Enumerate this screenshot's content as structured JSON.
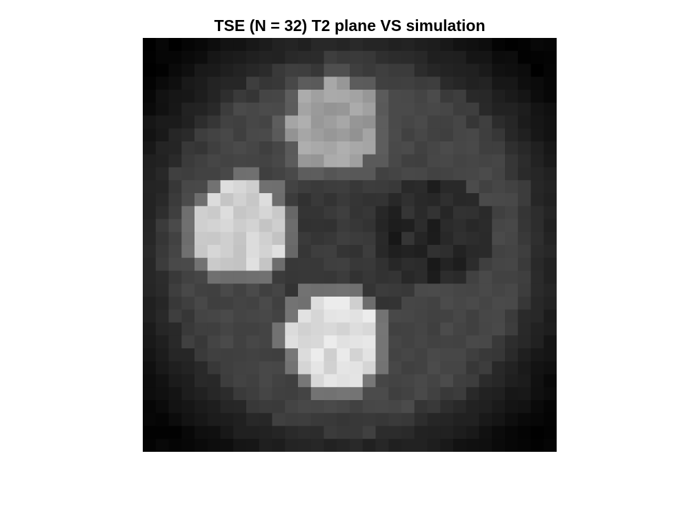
{
  "figure": {
    "title": "TSE (N = 32) T2 plane VS simulation"
  },
  "image": {
    "description_type": "grayscale-phantom-image",
    "grid": 32,
    "colormap": "gray",
    "features": [
      {
        "name": "phantom-disc",
        "intensity": 0.27
      },
      {
        "name": "top-vial",
        "intensity": 0.63
      },
      {
        "name": "left-vial",
        "intensity": 0.82
      },
      {
        "name": "bottom-vial",
        "intensity": 0.87
      },
      {
        "name": "right-vial",
        "intensity": 0.15
      },
      {
        "name": "center-region",
        "intensity": 0.22
      }
    ]
  }
}
